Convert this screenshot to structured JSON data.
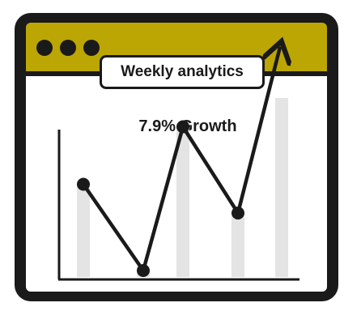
{
  "window": {
    "title": "Weekly analytics",
    "titlebar_color": "#bca604",
    "controls": [
      "window-dot-icon",
      "window-dot-icon",
      "window-dot-icon"
    ]
  },
  "headline": "7.9% Growth",
  "chart_data": {
    "type": "line",
    "title": "",
    "xlabel": "",
    "ylabel": "",
    "trend": "up",
    "end_arrow": true,
    "series": [
      {
        "values": [
          5,
          2,
          7,
          4,
          10
        ]
      }
    ],
    "bars": [
      5,
      2,
      7,
      4,
      8
    ],
    "ylim": [
      0,
      11
    ]
  }
}
